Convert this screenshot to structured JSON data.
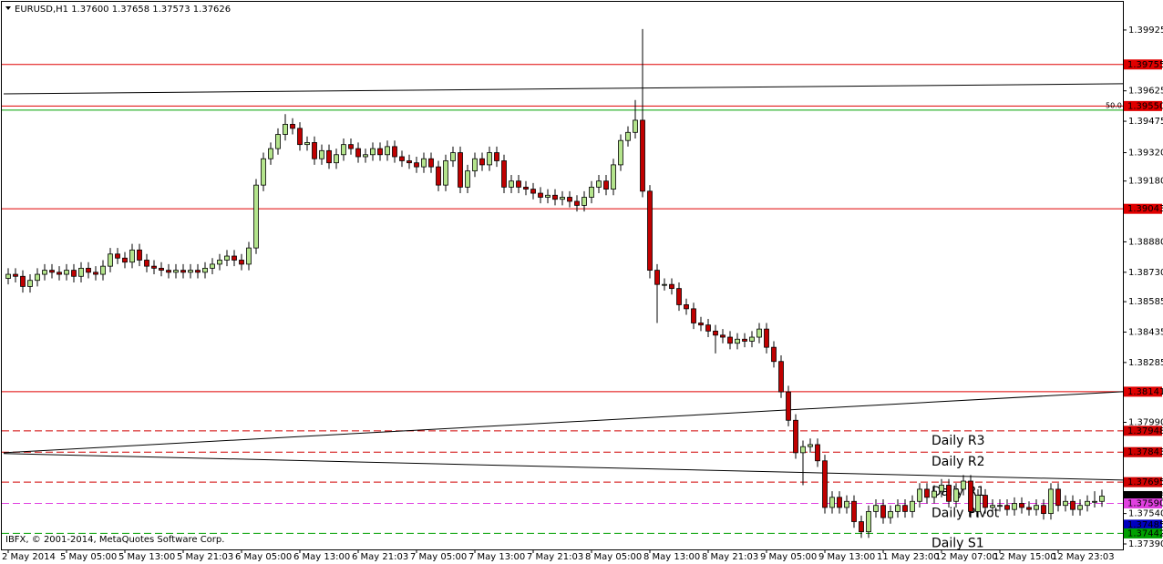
{
  "chart_data": {
    "type": "candlestick",
    "title": "EURUSD,H1  1.37600 1.37658 1.37573 1.37626",
    "copyright": "IBFX, © 2001-2014, MetaQuotes Software Corp.",
    "up_color": "#b4e48c",
    "down_color": "#c00000",
    "grid": false,
    "ylim": [
      1.37363,
      1.40073
    ],
    "yticks": [
      1.39925,
      1.39625,
      1.39475,
      {
        "value": 1.3932,
        "label": "1.39320"
      },
      {
        "value": 1.3918,
        "label": "1.39180"
      },
      {
        "value": 1.3888,
        "label": "1.38880"
      },
      {
        "value": 1.3873,
        "label": "1.38730"
      },
      1.38585,
      1.38435,
      1.38285,
      {
        "value": 1.3799,
        "label": "1.37990"
      },
      {
        "value": 1.3754,
        "label": "1.37540"
      },
      {
        "value": 1.3739,
        "label": "1.37390"
      }
    ],
    "categories": [
      "2 May 2014",
      null,
      null,
      null,
      null,
      null,
      null,
      null,
      "5 May 05:00",
      null,
      null,
      null,
      null,
      null,
      null,
      null,
      "5 May 13:00",
      null,
      null,
      null,
      null,
      null,
      null,
      null,
      "5 May 21:03",
      null,
      null,
      null,
      null,
      null,
      null,
      null,
      "6 May 05:00",
      null,
      null,
      null,
      null,
      null,
      null,
      null,
      "6 May 13:00",
      null,
      null,
      null,
      null,
      null,
      null,
      null,
      "6 May 21:03",
      null,
      null,
      null,
      null,
      null,
      null,
      null,
      "7 May 05:00",
      null,
      null,
      null,
      null,
      null,
      null,
      null,
      "7 May 13:00",
      null,
      null,
      null,
      null,
      null,
      null,
      null,
      "7 May 21:03",
      null,
      null,
      null,
      null,
      null,
      null,
      null,
      "8 May 05:00",
      null,
      null,
      null,
      null,
      null,
      null,
      null,
      "8 May 13:00",
      null,
      null,
      null,
      null,
      null,
      null,
      null,
      "8 May 21:03",
      null,
      null,
      null,
      null,
      null,
      null,
      null,
      "9 May 05:00",
      null,
      null,
      null,
      null,
      null,
      null,
      null,
      "9 May 13:00",
      null,
      null,
      null,
      null,
      null,
      null,
      null,
      "11 May 23:00",
      null,
      null,
      null,
      null,
      null,
      null,
      null,
      "12 May 07:00",
      null,
      null,
      null,
      null,
      null,
      null,
      null,
      "12 May 15:00",
      null,
      null,
      null,
      null,
      null,
      null,
      null,
      "12 May 23:03",
      null,
      null,
      null,
      null,
      null,
      null
    ],
    "ohlc": [
      [
        1.387,
        1.3875,
        1.3867,
        1.3872
      ],
      [
        1.3872,
        1.3875,
        1.3868,
        1.3871
      ],
      [
        1.3871,
        1.3874,
        1.3863,
        1.3866
      ],
      [
        1.3866,
        1.3872,
        1.3863,
        1.3869
      ],
      [
        1.3869,
        1.3875,
        1.3866,
        1.3872
      ],
      [
        1.3872,
        1.3877,
        1.3869,
        1.3874
      ],
      [
        1.3874,
        1.3877,
        1.387,
        1.3873
      ],
      [
        1.3873,
        1.3876,
        1.3869,
        1.3872
      ],
      [
        1.3872,
        1.3877,
        1.3869,
        1.3874
      ],
      [
        1.3874,
        1.3877,
        1.3868,
        1.3871
      ],
      [
        1.3871,
        1.3878,
        1.3868,
        1.3875
      ],
      [
        1.3875,
        1.3878,
        1.387,
        1.3873
      ],
      [
        1.3873,
        1.3876,
        1.3869,
        1.3872
      ],
      [
        1.3872,
        1.3879,
        1.3869,
        1.3876
      ],
      [
        1.3876,
        1.3885,
        1.3873,
        1.3882
      ],
      [
        1.3882,
        1.3885,
        1.3877,
        1.388
      ],
      [
        1.388,
        1.3883,
        1.3875,
        1.3878
      ],
      [
        1.3878,
        1.3887,
        1.3875,
        1.3884
      ],
      [
        1.3884,
        1.3887,
        1.3876,
        1.3879
      ],
      [
        1.3879,
        1.3882,
        1.3873,
        1.3876
      ],
      [
        1.3876,
        1.3879,
        1.3872,
        1.3875
      ],
      [
        1.3875,
        1.3878,
        1.3871,
        1.3874
      ],
      [
        1.3874,
        1.3877,
        1.387,
        1.3873
      ],
      [
        1.3873,
        1.3877,
        1.387,
        1.3874
      ],
      [
        1.3874,
        1.3877,
        1.387,
        1.3873
      ],
      [
        1.3873,
        1.3877,
        1.387,
        1.3874
      ],
      [
        1.3874,
        1.3877,
        1.387,
        1.3873
      ],
      [
        1.3873,
        1.3878,
        1.387,
        1.3875
      ],
      [
        1.3875,
        1.388,
        1.3872,
        1.3877
      ],
      [
        1.3877,
        1.3882,
        1.3874,
        1.3879
      ],
      [
        1.3879,
        1.3884,
        1.3876,
        1.3881
      ],
      [
        1.3881,
        1.3884,
        1.3876,
        1.3879
      ],
      [
        1.3879,
        1.3882,
        1.3874,
        1.3877
      ],
      [
        1.3877,
        1.3888,
        1.3874,
        1.3885
      ],
      [
        1.3885,
        1.3919,
        1.3882,
        1.3916
      ],
      [
        1.3916,
        1.3932,
        1.3913,
        1.3929
      ],
      [
        1.3929,
        1.3937,
        1.3926,
        1.3934
      ],
      [
        1.3934,
        1.3944,
        1.3931,
        1.3941
      ],
      [
        1.3941,
        1.3951,
        1.3938,
        1.3946
      ],
      [
        1.3946,
        1.3949,
        1.3941,
        1.3944
      ],
      [
        1.3944,
        1.3947,
        1.3933,
        1.3936
      ],
      [
        1.3936,
        1.394,
        1.3933,
        1.3937
      ],
      [
        1.3937,
        1.394,
        1.3926,
        1.3929
      ],
      [
        1.3929,
        1.3936,
        1.3926,
        1.3933
      ],
      [
        1.3933,
        1.3936,
        1.3924,
        1.3927
      ],
      [
        1.3927,
        1.3934,
        1.3924,
        1.3931
      ],
      [
        1.3931,
        1.3939,
        1.3928,
        1.3936
      ],
      [
        1.3936,
        1.3939,
        1.3931,
        1.3934
      ],
      [
        1.3934,
        1.3937,
        1.3927,
        1.393
      ],
      [
        1.393,
        1.3934,
        1.3927,
        1.3931
      ],
      [
        1.3931,
        1.3937,
        1.3928,
        1.3934
      ],
      [
        1.3934,
        1.3937,
        1.3928,
        1.3931
      ],
      [
        1.3931,
        1.3938,
        1.3928,
        1.3935
      ],
      [
        1.3935,
        1.3938,
        1.3927,
        1.393
      ],
      [
        1.393,
        1.3933,
        1.3925,
        1.3928
      ],
      [
        1.3928,
        1.3931,
        1.3924,
        1.3927
      ],
      [
        1.3927,
        1.393,
        1.3922,
        1.3925
      ],
      [
        1.3925,
        1.3932,
        1.3922,
        1.3929
      ],
      [
        1.3929,
        1.3932,
        1.3922,
        1.3925
      ],
      [
        1.3925,
        1.3928,
        1.3913,
        1.3916
      ],
      [
        1.3916,
        1.3931,
        1.3913,
        1.3928
      ],
      [
        1.3928,
        1.3935,
        1.3925,
        1.3932
      ],
      [
        1.3932,
        1.3935,
        1.3912,
        1.3915
      ],
      [
        1.3915,
        1.3926,
        1.3912,
        1.3923
      ],
      [
        1.3923,
        1.3932,
        1.392,
        1.3929
      ],
      [
        1.3929,
        1.3932,
        1.3923,
        1.3926
      ],
      [
        1.3926,
        1.3935,
        1.3923,
        1.3932
      ],
      [
        1.3932,
        1.3935,
        1.3925,
        1.3928
      ],
      [
        1.3928,
        1.3931,
        1.3912,
        1.3915
      ],
      [
        1.3915,
        1.3921,
        1.3912,
        1.3918
      ],
      [
        1.3918,
        1.3921,
        1.3912,
        1.3915
      ],
      [
        1.3915,
        1.3918,
        1.3911,
        1.3914
      ],
      [
        1.3914,
        1.3917,
        1.3909,
        1.3912
      ],
      [
        1.3912,
        1.3915,
        1.3907,
        1.391
      ],
      [
        1.391,
        1.3914,
        1.3907,
        1.3911
      ],
      [
        1.3911,
        1.3914,
        1.3906,
        1.3909
      ],
      [
        1.3909,
        1.3913,
        1.3906,
        1.391
      ],
      [
        1.391,
        1.3913,
        1.3905,
        1.3908
      ],
      [
        1.3908,
        1.3911,
        1.3903,
        1.3906
      ],
      [
        1.3906,
        1.3913,
        1.3903,
        1.391
      ],
      [
        1.391,
        1.3918,
        1.3907,
        1.3915
      ],
      [
        1.3915,
        1.3921,
        1.3912,
        1.3918
      ],
      [
        1.3918,
        1.3921,
        1.3911,
        1.3914
      ],
      [
        1.3914,
        1.3929,
        1.3911,
        1.3926
      ],
      [
        1.3926,
        1.3941,
        1.3923,
        1.3938
      ],
      [
        1.3938,
        1.3945,
        1.3935,
        1.3942
      ],
      [
        1.3942,
        1.3958,
        1.3939,
        1.3948
      ],
      [
        1.3948,
        1.3993,
        1.391,
        1.3913
      ],
      [
        1.3913,
        1.3916,
        1.387,
        1.3874
      ],
      [
        1.3874,
        1.3877,
        1.3848,
        1.3867
      ],
      [
        1.3867,
        1.387,
        1.3864,
        1.3867
      ],
      [
        1.3867,
        1.387,
        1.3862,
        1.3865
      ],
      [
        1.3865,
        1.3868,
        1.3854,
        1.3857
      ],
      [
        1.3857,
        1.386,
        1.3852,
        1.3855
      ],
      [
        1.3855,
        1.3858,
        1.3845,
        1.3848
      ],
      [
        1.3848,
        1.3851,
        1.3844,
        1.3847
      ],
      [
        1.3847,
        1.385,
        1.3841,
        1.3844
      ],
      [
        1.3844,
        1.3847,
        1.3833,
        1.3842
      ],
      [
        1.3842,
        1.3845,
        1.3838,
        1.3841
      ],
      [
        1.3841,
        1.3844,
        1.3835,
        1.3838
      ],
      [
        1.3838,
        1.3843,
        1.3835,
        1.384
      ],
      [
        1.384,
        1.3843,
        1.3836,
        1.3839
      ],
      [
        1.3839,
        1.3844,
        1.3836,
        1.3841
      ],
      [
        1.3841,
        1.3848,
        1.3838,
        1.3845
      ],
      [
        1.3845,
        1.3848,
        1.3833,
        1.3836
      ],
      [
        1.3836,
        1.3839,
        1.3826,
        1.3829
      ],
      [
        1.3829,
        1.3832,
        1.3811,
        1.3814
      ],
      [
        1.3814,
        1.3817,
        1.3797,
        1.38
      ],
      [
        1.38,
        1.3803,
        1.3781,
        1.3784
      ],
      [
        1.3784,
        1.379,
        1.3768,
        1.3787
      ],
      [
        1.3787,
        1.3791,
        1.3784,
        1.3788
      ],
      [
        1.3788,
        1.3791,
        1.3777,
        1.378
      ],
      [
        1.378,
        1.3783,
        1.3754,
        1.3757
      ],
      [
        1.3757,
        1.3765,
        1.3754,
        1.3762
      ],
      [
        1.3762,
        1.3765,
        1.3754,
        1.3757
      ],
      [
        1.3757,
        1.3763,
        1.3754,
        1.376
      ],
      [
        1.376,
        1.3763,
        1.3747,
        1.375
      ],
      [
        1.375,
        1.3753,
        1.3742,
        1.3745
      ],
      [
        1.3745,
        1.3758,
        1.3742,
        1.3755
      ],
      [
        1.3755,
        1.3761,
        1.3752,
        1.3758
      ],
      [
        1.3758,
        1.3761,
        1.3749,
        1.3752
      ],
      [
        1.3752,
        1.3758,
        1.3749,
        1.3755
      ],
      [
        1.3755,
        1.3761,
        1.3752,
        1.3758
      ],
      [
        1.3758,
        1.3761,
        1.3752,
        1.3755
      ],
      [
        1.3755,
        1.3763,
        1.3752,
        1.376
      ],
      [
        1.376,
        1.3769,
        1.3757,
        1.3766
      ],
      [
        1.3766,
        1.3769,
        1.3759,
        1.3762
      ],
      [
        1.3762,
        1.3768,
        1.3759,
        1.3765
      ],
      [
        1.3765,
        1.3771,
        1.3762,
        1.3768
      ],
      [
        1.3768,
        1.3771,
        1.3757,
        1.376
      ],
      [
        1.376,
        1.3769,
        1.3757,
        1.3766
      ],
      [
        1.3766,
        1.3773,
        1.3763,
        1.377
      ],
      [
        1.377,
        1.3773,
        1.3752,
        1.3755
      ],
      [
        1.3755,
        1.3766,
        1.3752,
        1.3763
      ],
      [
        1.3763,
        1.3766,
        1.3754,
        1.3757
      ],
      [
        1.3757,
        1.3761,
        1.3754,
        1.3758
      ],
      [
        1.3758,
        1.3761,
        1.3755,
        1.3758
      ],
      [
        1.3758,
        1.3761,
        1.3753,
        1.3756
      ],
      [
        1.3756,
        1.3762,
        1.3753,
        1.3759
      ],
      [
        1.3759,
        1.3762,
        1.3754,
        1.3757
      ],
      [
        1.3757,
        1.376,
        1.3753,
        1.3756
      ],
      [
        1.3756,
        1.3761,
        1.3753,
        1.3758
      ],
      [
        1.3758,
        1.3761,
        1.3751,
        1.3754
      ],
      [
        1.3754,
        1.3769,
        1.3751,
        1.3766
      ],
      [
        1.3766,
        1.3769,
        1.3755,
        1.3758
      ],
      [
        1.3758,
        1.3763,
        1.3755,
        1.376
      ],
      [
        1.376,
        1.3763,
        1.3753,
        1.3756
      ],
      [
        1.3756,
        1.3761,
        1.3753,
        1.3758
      ],
      [
        1.3758,
        1.3763,
        1.3755,
        1.376
      ],
      [
        1.376,
        1.3765,
        1.3757,
        1.376
      ],
      [
        1.376,
        1.37658,
        1.37573,
        1.37626
      ]
    ],
    "trendlines": [
      {
        "start": 1.3961,
        "end": 1.3966
      },
      {
        "start": 1.3784,
        "end": 1.38141
      },
      {
        "start": 1.37836,
        "end": 1.37705
      }
    ],
    "fib_level": {
      "value": 1.3953,
      "label": "50.0",
      "color": "#00a000"
    },
    "levels": [
      {
        "value": 1.39755,
        "label": "1.39755",
        "color": "#e00000",
        "style": "solid"
      },
      {
        "value": 1.3955,
        "label": "1.39550",
        "color": "#e00000",
        "style": "solid"
      },
      {
        "value": 1.39043,
        "label": "1.39043",
        "color": "#e00000",
        "style": "solid"
      },
      {
        "value": 1.38141,
        "label": "1.38141",
        "color": "#e00000",
        "style": "solid"
      },
      {
        "value": 1.37948,
        "label": "1.37948",
        "color": "#d00000",
        "style": "dashed",
        "name": "Daily R3",
        "name_color": "#e03030"
      },
      {
        "value": 1.37843,
        "label": "1.37843",
        "color": "#d00000",
        "style": "dashed",
        "name": "Daily R2",
        "name_color": "#e03030"
      },
      {
        "value": 1.37695,
        "label": "1.37695",
        "color": "#d00000",
        "style": "dashed",
        "name": "Daily R1",
        "name_color": "#e03030"
      },
      {
        "value": 1.37626,
        "label": "1.37626",
        "color": "#000000",
        "style": "none"
      },
      {
        "value": 1.3759,
        "label": "1.37590",
        "color": "#e040e0",
        "style": "dashed",
        "name": "Daily Pivot",
        "name_color": "#e040e0"
      },
      {
        "value": 1.37485,
        "label": "1.37485",
        "color": "#0000c0",
        "style": "none"
      },
      {
        "value": 1.37442,
        "label": "1.37442",
        "color": "#00a000",
        "style": "dashed",
        "name": "Daily S1",
        "name_color": "#000080"
      }
    ]
  }
}
